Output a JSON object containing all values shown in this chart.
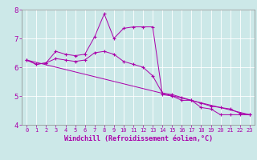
{
  "xlabel": "Windchill (Refroidissement éolien,°C)",
  "background_color": "#cce8e8",
  "line_color": "#aa00aa",
  "grid_color": "#aacccc",
  "spine_color": "#888888",
  "xlim": [
    -0.5,
    23.5
  ],
  "ylim": [
    4,
    8
  ],
  "yticks": [
    4,
    5,
    6,
    7,
    8
  ],
  "xticks": [
    0,
    1,
    2,
    3,
    4,
    5,
    6,
    7,
    8,
    9,
    10,
    11,
    12,
    13,
    14,
    15,
    16,
    17,
    18,
    19,
    20,
    21,
    22,
    23
  ],
  "series": [
    {
      "x": [
        0,
        1,
        2,
        3,
        4,
        5,
        6,
        7,
        8,
        9,
        10,
        11,
        12,
        13,
        14,
        15,
        16,
        17,
        18,
        19,
        20,
        21,
        22,
        23
      ],
      "y": [
        6.25,
        6.1,
        6.15,
        6.55,
        6.45,
        6.4,
        6.45,
        7.05,
        7.85,
        7.0,
        7.35,
        7.4,
        7.4,
        7.4,
        5.05,
        5.0,
        4.85,
        4.85,
        4.6,
        4.55,
        4.35,
        4.35,
        4.35,
        4.35
      ],
      "marker": true
    },
    {
      "x": [
        0,
        23
      ],
      "y": [
        6.25,
        4.35
      ],
      "marker": false
    },
    {
      "x": [
        0,
        1,
        2,
        3,
        4,
        5,
        6,
        7,
        8,
        9,
        10,
        11,
        12,
        13,
        14,
        15,
        16,
        17,
        18,
        19,
        20,
        21,
        22,
        23
      ],
      "y": [
        6.25,
        6.1,
        6.15,
        6.3,
        6.25,
        6.2,
        6.25,
        6.5,
        6.55,
        6.45,
        6.2,
        6.1,
        6.0,
        5.7,
        5.1,
        5.05,
        4.95,
        4.85,
        4.75,
        4.65,
        4.6,
        4.55,
        4.4,
        4.35
      ],
      "marker": true
    }
  ],
  "xlabel_fontsize": 6.0,
  "tick_fontsize_x": 5.0,
  "tick_fontsize_y": 6.5
}
